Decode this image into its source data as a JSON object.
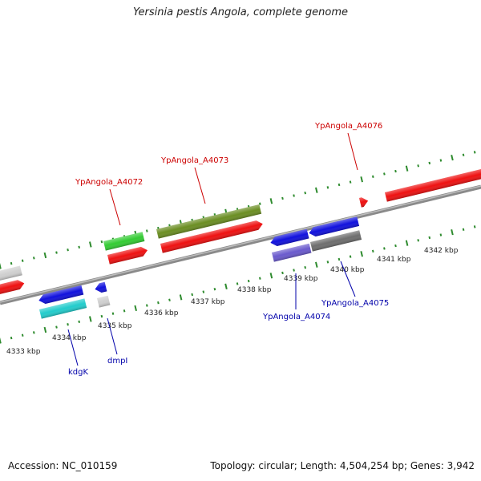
{
  "title": "Yersinia pestis Angola, complete genome",
  "footer": {
    "accession": "Accession: NC_010159",
    "summary": "Topology: circular; Length: 4,504,254 bp; Genes: 3,942"
  },
  "colors": {
    "backbone": "#8a8a8a",
    "ruler_tick": "#2e8b2e",
    "label_forward": "#cc0000",
    "label_reverse": "#0000aa"
  },
  "ruler_labels": [
    {
      "id": "4333",
      "text": "4333 kbp"
    },
    {
      "id": "4334",
      "text": "4334 kbp"
    },
    {
      "id": "4335",
      "text": "4335 kbp"
    },
    {
      "id": "4336",
      "text": "4336 kbp"
    },
    {
      "id": "4337",
      "text": "4337 kbp"
    },
    {
      "id": "4338",
      "text": "4338 kbp"
    },
    {
      "id": "4339",
      "text": "4339 kbp"
    },
    {
      "id": "4340",
      "text": "4340 kbp"
    },
    {
      "id": "4341",
      "text": "4341 kbp"
    },
    {
      "id": "4342",
      "text": "4342 kbp"
    }
  ],
  "gene_labels": [
    {
      "id": "a4072",
      "text": "YpAngola_A4072",
      "strand": "forward"
    },
    {
      "id": "a4073",
      "text": "YpAngola_A4073",
      "strand": "forward"
    },
    {
      "id": "a4076",
      "text": "YpAngola_A4076",
      "strand": "forward"
    },
    {
      "id": "kdgk",
      "text": "kdgK",
      "strand": "reverse"
    },
    {
      "id": "dmpi",
      "text": "dmpI",
      "strand": "reverse"
    },
    {
      "id": "a4074",
      "text": "YpAngola_A4074",
      "strand": "reverse"
    },
    {
      "id": "a4075",
      "text": "YpAngola_A4075",
      "strand": "reverse"
    }
  ],
  "features": [
    {
      "id": "f-gray-left",
      "color": "#cfcfcf"
    },
    {
      "id": "f-red-left",
      "color": "#ee1111"
    },
    {
      "id": "f-blue-kdgk",
      "color": "#1111dd"
    },
    {
      "id": "f-cyan-kdgk",
      "color": "#22cccc"
    },
    {
      "id": "f-blue-dmpi",
      "color": "#1111dd"
    },
    {
      "id": "f-gray-dmpi",
      "color": "#cfcfcf"
    },
    {
      "id": "f-green-a4072",
      "color": "#33cc33"
    },
    {
      "id": "f-red-a4072",
      "color": "#ee1111"
    },
    {
      "id": "f-olive-a4073",
      "color": "#6b8e23"
    },
    {
      "id": "f-red-a4073",
      "color": "#ee1111"
    },
    {
      "id": "f-blue-a4074",
      "color": "#1111dd"
    },
    {
      "id": "f-purple-a4074",
      "color": "#6a5acd"
    },
    {
      "id": "f-blue-a4075",
      "color": "#1111dd"
    },
    {
      "id": "f-darkgray-a4075",
      "color": "#6e6e6e"
    },
    {
      "id": "f-red-a4076",
      "color": "#ee1111"
    },
    {
      "id": "f-red-right",
      "color": "#ee1111"
    }
  ]
}
